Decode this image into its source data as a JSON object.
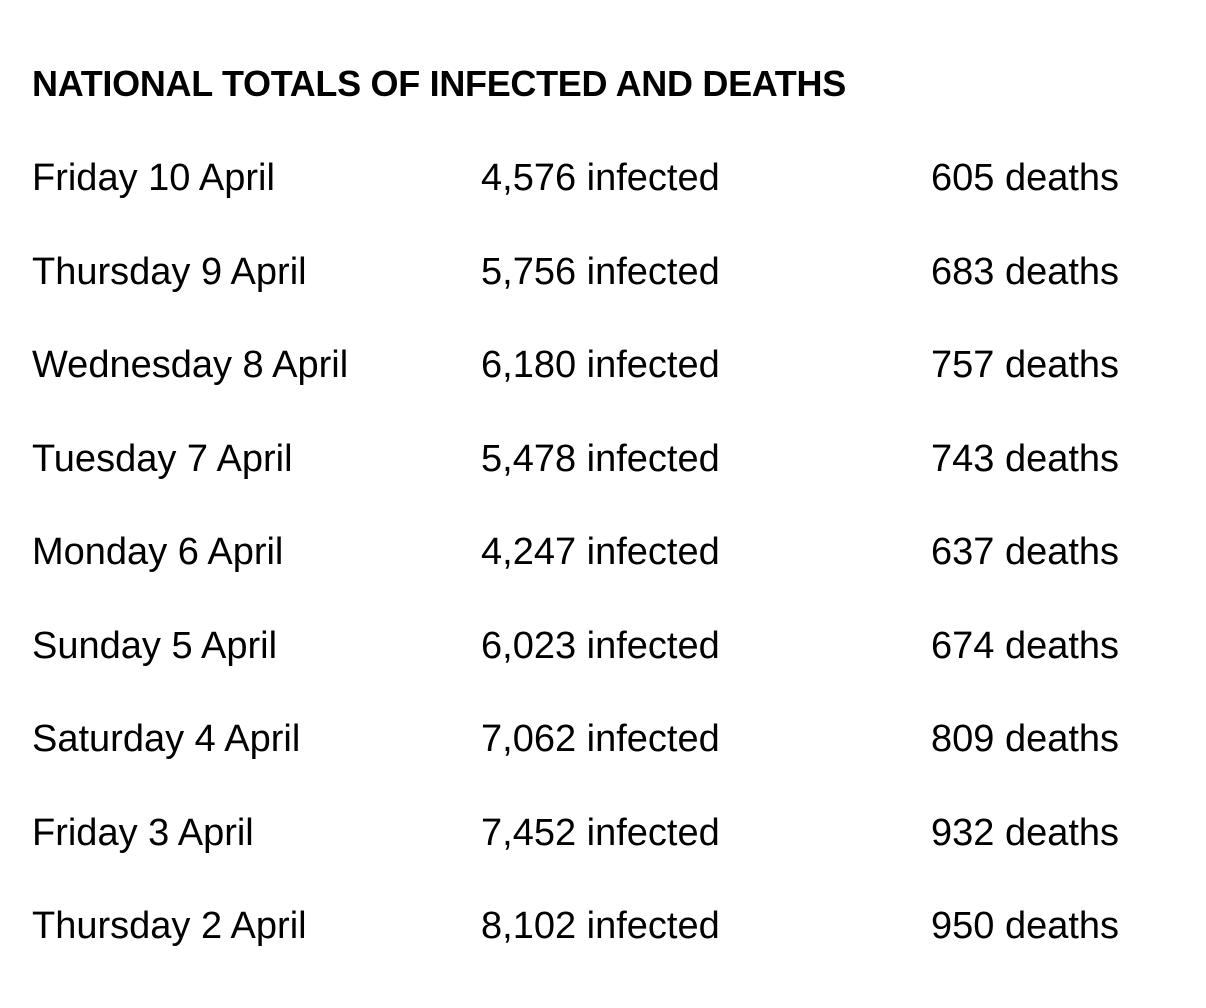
{
  "title": "NATIONAL TOTALS OF INFECTED AND DEATHS",
  "rows": [
    {
      "date": "Friday 10 April",
      "infected": "4,576 infected",
      "deaths": "605 deaths"
    },
    {
      "date": "Thursday 9 April",
      "infected": "5,756 infected",
      "deaths": "683 deaths"
    },
    {
      "date": "Wednesday 8 April",
      "infected": "6,180 infected",
      "deaths": "757 deaths"
    },
    {
      "date": "Tuesday 7 April",
      "infected": "5,478 infected",
      "deaths": "743 deaths"
    },
    {
      "date": "Monday 6 April",
      "infected": "4,247 infected",
      "deaths": "637 deaths"
    },
    {
      "date": "Sunday 5 April",
      "infected": "6,023 infected",
      "deaths": "674 deaths"
    },
    {
      "date": "Saturday 4 April",
      "infected": "7,062 infected",
      "deaths": "809 deaths"
    },
    {
      "date": "Friday 3 April",
      "infected": "7,452 infected",
      "deaths": "932 deaths"
    },
    {
      "date": "Thursday 2 April",
      "infected": "8,102 infected",
      "deaths": "950 deaths"
    }
  ]
}
